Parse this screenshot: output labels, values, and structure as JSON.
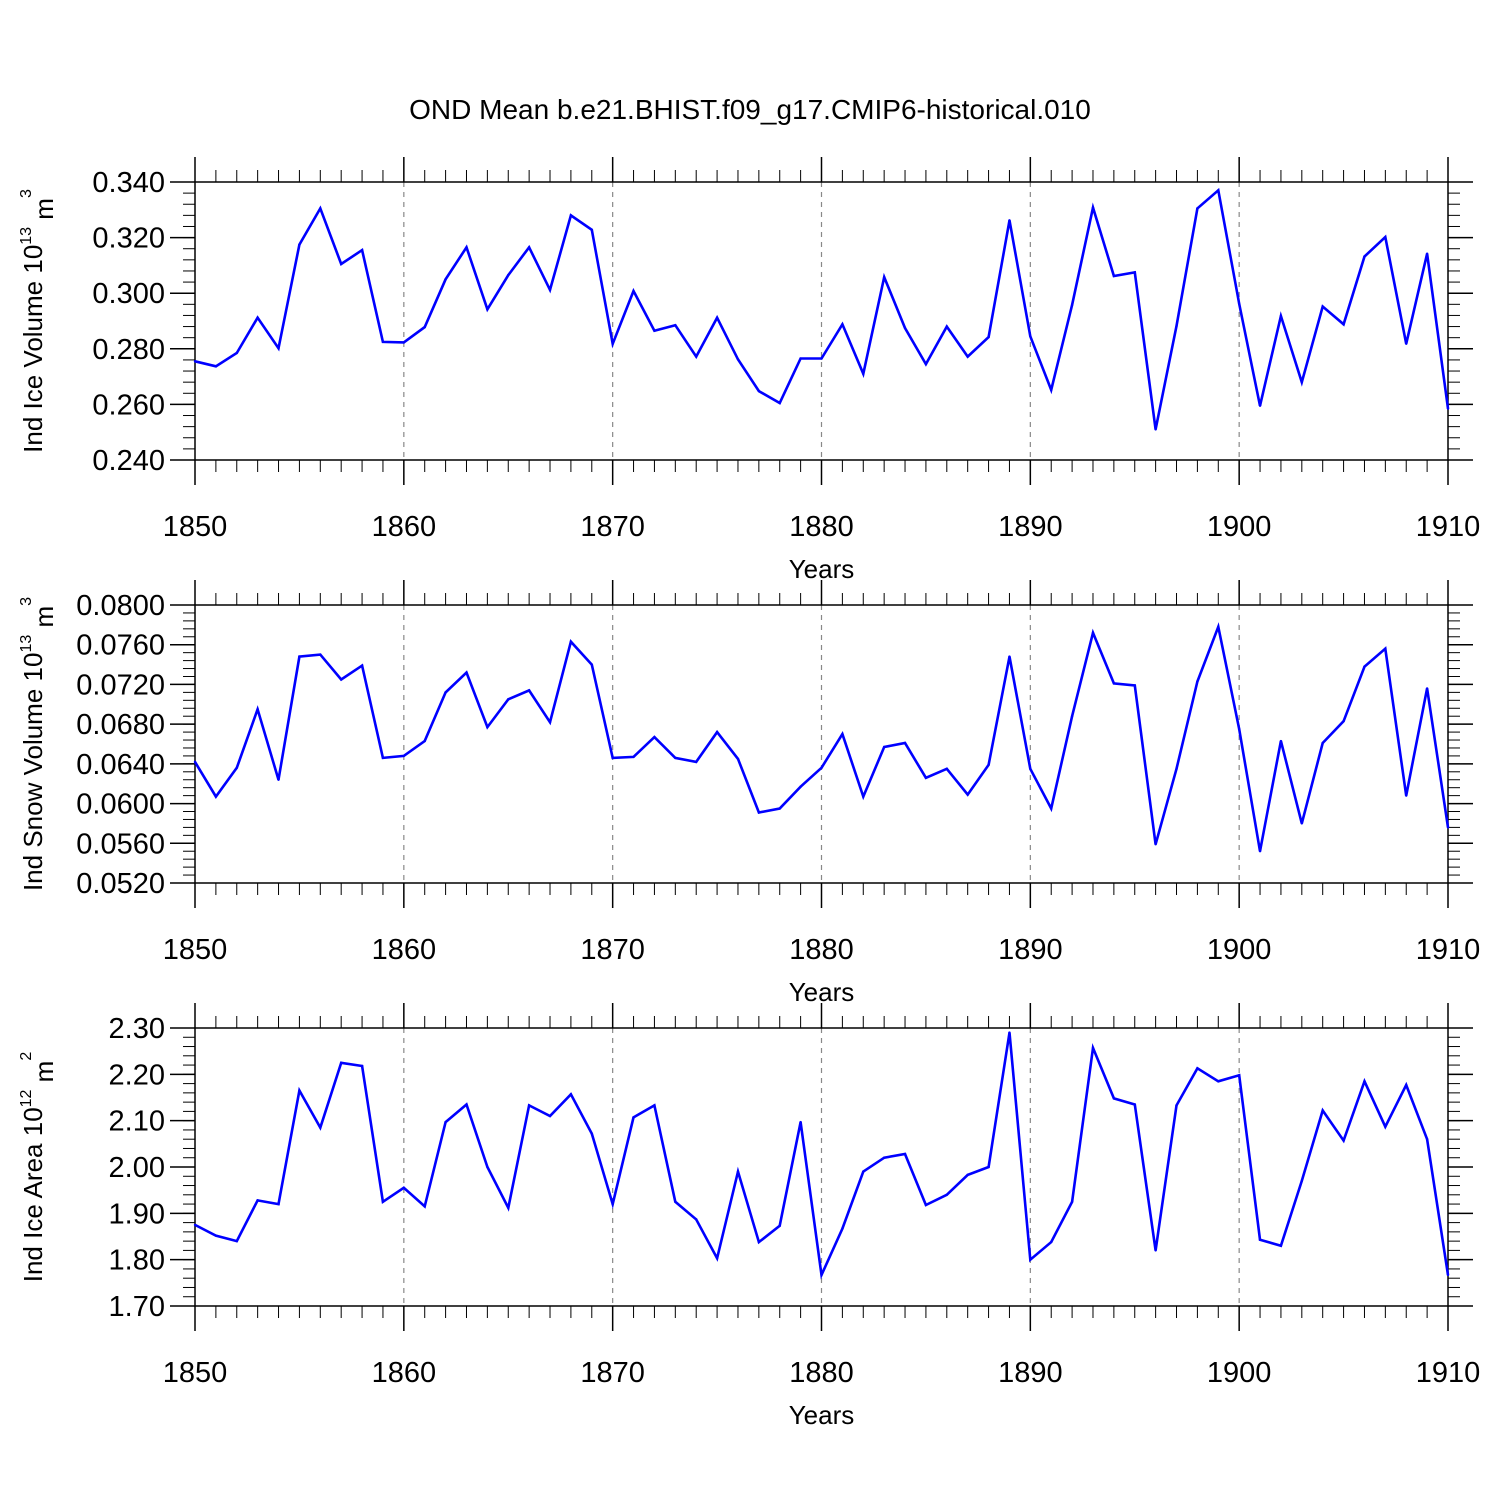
{
  "title": "OND Mean b.e21.BHIST.f09_g17.CMIP6-historical.010",
  "colors": {
    "line": "#0000ff",
    "axis": "#000000",
    "grid": "#888888"
  },
  "chart_data": [
    {
      "type": "line",
      "name": "ice-volume",
      "ylabel": {
        "prefix": "Ind Ice Volume 10",
        "exp": "13",
        "unit": " m",
        "unit_exp": "3"
      },
      "xlabel": "Years",
      "xlim": [
        1850,
        1910
      ],
      "ylim": [
        0.24,
        0.34
      ],
      "y_ticks": [
        "0.240",
        "0.260",
        "0.280",
        "0.300",
        "0.320",
        "0.340"
      ],
      "x_ticks": [
        "1850",
        "1860",
        "1870",
        "1880",
        "1890",
        "1900",
        "1910"
      ],
      "x_grid": true,
      "x": [
        1850,
        1851,
        1852,
        1853,
        1854,
        1855,
        1856,
        1857,
        1858,
        1859,
        1860,
        1861,
        1862,
        1863,
        1864,
        1865,
        1866,
        1867,
        1868,
        1869,
        1870,
        1871,
        1872,
        1873,
        1874,
        1875,
        1876,
        1877,
        1878,
        1879,
        1880,
        1881,
        1882,
        1883,
        1884,
        1885,
        1886,
        1887,
        1888,
        1889,
        1890,
        1891,
        1892,
        1893,
        1894,
        1895,
        1896,
        1897,
        1898,
        1899,
        1900,
        1901,
        1902,
        1903,
        1904,
        1905,
        1906,
        1907,
        1908,
        1909,
        1910
      ],
      "values": [
        0.2755,
        0.2737,
        0.2785,
        0.2912,
        0.2802,
        0.3175,
        0.3305,
        0.3105,
        0.3155,
        0.2825,
        0.2823,
        0.2878,
        0.305,
        0.3165,
        0.2942,
        0.3065,
        0.3165,
        0.3012,
        0.328,
        0.3228,
        0.2818,
        0.3008,
        0.2865,
        0.2885,
        0.2772,
        0.2912,
        0.2762,
        0.2648,
        0.2605,
        0.2765,
        0.2765,
        0.2888,
        0.271,
        0.3058,
        0.2875,
        0.2745,
        0.288,
        0.2772,
        0.2842,
        0.3262,
        0.2845,
        0.2652,
        0.2958,
        0.3308,
        0.3062,
        0.3075,
        0.251,
        0.2882,
        0.3305,
        0.337,
        0.2962,
        0.2595,
        0.2918,
        0.268,
        0.2952,
        0.2888,
        0.3132,
        0.3202,
        0.2818,
        0.3142,
        0.2585
      ]
    },
    {
      "type": "line",
      "name": "snow-volume",
      "ylabel": {
        "prefix": "Ind Snow Volume 10",
        "exp": "13",
        "unit": " m",
        "unit_exp": "3"
      },
      "xlabel": "Years",
      "xlim": [
        1850,
        1910
      ],
      "ylim": [
        0.052,
        0.08
      ],
      "y_ticks": [
        "0.0520",
        "0.0560",
        "0.0600",
        "0.0640",
        "0.0680",
        "0.0720",
        "0.0760",
        "0.0800"
      ],
      "x_ticks": [
        "1850",
        "1860",
        "1870",
        "1880",
        "1890",
        "1900",
        "1910"
      ],
      "x_grid": true,
      "x": [
        1850,
        1851,
        1852,
        1853,
        1854,
        1855,
        1856,
        1857,
        1858,
        1859,
        1860,
        1861,
        1862,
        1863,
        1864,
        1865,
        1866,
        1867,
        1868,
        1869,
        1870,
        1871,
        1872,
        1873,
        1874,
        1875,
        1876,
        1877,
        1878,
        1879,
        1880,
        1881,
        1882,
        1883,
        1884,
        1885,
        1886,
        1887,
        1888,
        1889,
        1890,
        1891,
        1892,
        1893,
        1894,
        1895,
        1896,
        1897,
        1898,
        1899,
        1900,
        1901,
        1902,
        1903,
        1904,
        1905,
        1906,
        1907,
        1908,
        1909,
        1910
      ],
      "values": [
        0.0642,
        0.0607,
        0.0636,
        0.0695,
        0.0624,
        0.0748,
        0.075,
        0.0725,
        0.0739,
        0.0646,
        0.0648,
        0.0663,
        0.0712,
        0.0732,
        0.0677,
        0.0705,
        0.0714,
        0.0682,
        0.0763,
        0.074,
        0.0646,
        0.0647,
        0.0667,
        0.0646,
        0.0642,
        0.0672,
        0.0645,
        0.0591,
        0.0595,
        0.0617,
        0.0636,
        0.067,
        0.0607,
        0.0657,
        0.0661,
        0.0626,
        0.0635,
        0.0609,
        0.0639,
        0.0748,
        0.0635,
        0.0595,
        0.0688,
        0.0772,
        0.0721,
        0.0719,
        0.0559,
        0.0635,
        0.0723,
        0.0778,
        0.0675,
        0.0552,
        0.0663,
        0.058,
        0.0661,
        0.0683,
        0.0738,
        0.0756,
        0.0608,
        0.0716,
        0.0576
      ]
    },
    {
      "type": "line",
      "name": "ice-area",
      "ylabel": {
        "prefix": "Ind Ice Area 10",
        "exp": "12",
        "unit": " m",
        "unit_exp": "2"
      },
      "xlabel": "Years",
      "xlim": [
        1850,
        1910
      ],
      "ylim": [
        1.7,
        2.3
      ],
      "y_ticks": [
        "1.70",
        "1.80",
        "1.90",
        "2.00",
        "2.10",
        "2.20",
        "2.30"
      ],
      "x_ticks": [
        "1850",
        "1860",
        "1870",
        "1880",
        "1890",
        "1900",
        "1910"
      ],
      "x_grid": true,
      "x": [
        1850,
        1851,
        1852,
        1853,
        1854,
        1855,
        1856,
        1857,
        1858,
        1859,
        1860,
        1861,
        1862,
        1863,
        1864,
        1865,
        1866,
        1867,
        1868,
        1869,
        1870,
        1871,
        1872,
        1873,
        1874,
        1875,
        1876,
        1877,
        1878,
        1879,
        1880,
        1881,
        1882,
        1883,
        1884,
        1885,
        1886,
        1887,
        1888,
        1889,
        1890,
        1891,
        1892,
        1893,
        1894,
        1895,
        1896,
        1897,
        1898,
        1899,
        1900,
        1901,
        1902,
        1903,
        1904,
        1905,
        1906,
        1907,
        1908,
        1909,
        1910
      ],
      "values": [
        1.875,
        1.852,
        1.84,
        1.928,
        1.92,
        2.165,
        2.085,
        2.225,
        2.218,
        1.925,
        1.955,
        1.915,
        2.097,
        2.135,
        2.0,
        1.912,
        2.133,
        2.11,
        2.157,
        2.072,
        1.92,
        2.107,
        2.133,
        1.925,
        1.887,
        1.803,
        1.99,
        1.838,
        1.873,
        2.097,
        1.767,
        1.867,
        1.99,
        2.02,
        2.028,
        1.918,
        1.94,
        1.983,
        2.0,
        2.29,
        1.8,
        1.838,
        1.925,
        2.257,
        2.148,
        2.135,
        1.82,
        2.133,
        2.213,
        2.185,
        2.198,
        1.843,
        1.83,
        1.97,
        2.122,
        2.057,
        2.185,
        2.087,
        2.177,
        2.06,
        1.767
      ]
    }
  ]
}
